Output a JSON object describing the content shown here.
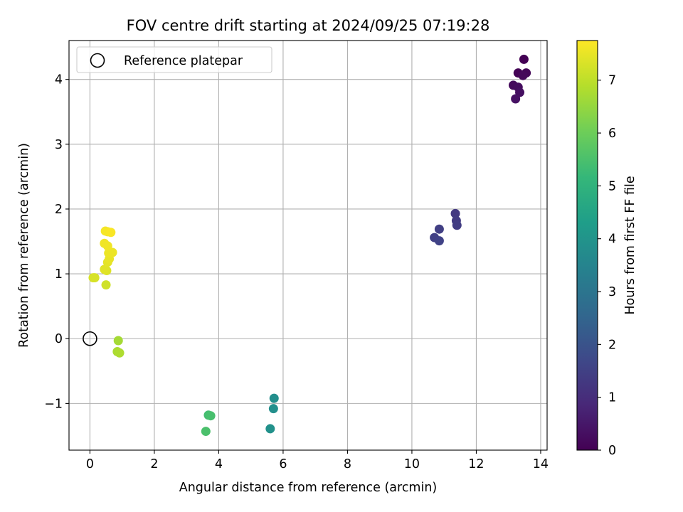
{
  "chart_data": {
    "type": "scatter",
    "title": "FOV centre drift starting at 2024/09/25 07:19:28",
    "xlabel": "Angular distance from reference (arcmin)",
    "ylabel": "Rotation from reference (arcmin)",
    "xlim": [
      -0.65,
      14.2
    ],
    "ylim": [
      -1.72,
      4.6
    ],
    "xticks": [
      0,
      2,
      4,
      6,
      8,
      10,
      12,
      14
    ],
    "yticks": [
      -1,
      0,
      1,
      2,
      3,
      4
    ],
    "xtick_labels": [
      "0",
      "2",
      "4",
      "6",
      "8",
      "10",
      "12",
      "14"
    ],
    "ytick_labels": [
      "−1",
      "0",
      "1",
      "2",
      "3",
      "4"
    ],
    "grid": true,
    "legend": {
      "placement": "top-left",
      "entries": [
        "Reference platepar"
      ]
    },
    "colorbar": {
      "label": "Hours from first FF file",
      "range": [
        0,
        7.75
      ],
      "ticks": [
        0,
        1,
        2,
        3,
        4,
        5,
        6,
        7
      ],
      "tick_labels": [
        "0",
        "1",
        "2",
        "3",
        "4",
        "5",
        "6",
        "7"
      ],
      "colormap": "viridis"
    },
    "reference_point": {
      "name": "Reference platepar",
      "x": 0,
      "y": 0,
      "marker": "open-circle"
    },
    "points": [
      {
        "x": 13.48,
        "y": 4.31,
        "hours": 0.0
      },
      {
        "x": 13.3,
        "y": 4.1,
        "hours": 0.05
      },
      {
        "x": 13.55,
        "y": 4.1,
        "hours": 0.1
      },
      {
        "x": 13.45,
        "y": 4.06,
        "hours": 0.15
      },
      {
        "x": 13.15,
        "y": 3.91,
        "hours": 0.2
      },
      {
        "x": 13.3,
        "y": 3.88,
        "hours": 0.25
      },
      {
        "x": 13.35,
        "y": 3.8,
        "hours": 0.3
      },
      {
        "x": 13.22,
        "y": 3.7,
        "hours": 0.35
      },
      {
        "x": 11.35,
        "y": 1.93,
        "hours": 1.3
      },
      {
        "x": 11.38,
        "y": 1.82,
        "hours": 1.35
      },
      {
        "x": 11.4,
        "y": 1.75,
        "hours": 1.4
      },
      {
        "x": 10.85,
        "y": 1.69,
        "hours": 1.45
      },
      {
        "x": 10.7,
        "y": 1.56,
        "hours": 1.5
      },
      {
        "x": 10.85,
        "y": 1.51,
        "hours": 1.55
      },
      {
        "x": 5.72,
        "y": -0.92,
        "hours": 3.8
      },
      {
        "x": 5.7,
        "y": -1.08,
        "hours": 3.85
      },
      {
        "x": 5.6,
        "y": -1.39,
        "hours": 3.9
      },
      {
        "x": 3.68,
        "y": -1.18,
        "hours": 5.4
      },
      {
        "x": 3.75,
        "y": -1.19,
        "hours": 5.45
      },
      {
        "x": 3.6,
        "y": -1.43,
        "hours": 5.5
      },
      {
        "x": 0.88,
        "y": -0.03,
        "hours": 6.7
      },
      {
        "x": 0.85,
        "y": -0.2,
        "hours": 6.75
      },
      {
        "x": 0.92,
        "y": -0.22,
        "hours": 6.8
      },
      {
        "x": 0.5,
        "y": 0.83,
        "hours": 7.2
      },
      {
        "x": 0.1,
        "y": 0.94,
        "hours": 7.3
      },
      {
        "x": 0.15,
        "y": 0.94,
        "hours": 7.3
      },
      {
        "x": 0.52,
        "y": 1.05,
        "hours": 7.35
      },
      {
        "x": 0.45,
        "y": 1.07,
        "hours": 7.4
      },
      {
        "x": 0.55,
        "y": 1.18,
        "hours": 7.45
      },
      {
        "x": 0.6,
        "y": 1.23,
        "hours": 7.5
      },
      {
        "x": 0.58,
        "y": 1.32,
        "hours": 7.55
      },
      {
        "x": 0.7,
        "y": 1.33,
        "hours": 7.55
      },
      {
        "x": 0.45,
        "y": 1.47,
        "hours": 7.6
      },
      {
        "x": 0.55,
        "y": 1.43,
        "hours": 7.6
      },
      {
        "x": 0.48,
        "y": 1.66,
        "hours": 7.65
      },
      {
        "x": 0.55,
        "y": 1.65,
        "hours": 7.65
      },
      {
        "x": 0.65,
        "y": 1.64,
        "hours": 7.7
      }
    ]
  }
}
